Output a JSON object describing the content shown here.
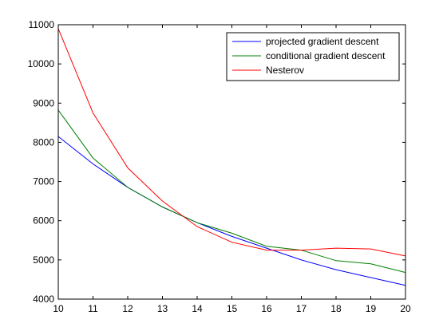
{
  "chart_data": {
    "type": "line",
    "title": "",
    "xlabel": "",
    "ylabel": "",
    "xlim": [
      10,
      20
    ],
    "ylim": [
      4000,
      11000
    ],
    "xticks": [
      10,
      11,
      12,
      13,
      14,
      15,
      16,
      17,
      18,
      19,
      20
    ],
    "yticks": [
      4000,
      5000,
      6000,
      7000,
      8000,
      9000,
      10000,
      11000
    ],
    "grid": false,
    "legend_position": "top-right",
    "x": [
      10,
      11,
      12,
      13,
      14,
      15,
      16,
      17,
      18,
      19,
      20
    ],
    "series": [
      {
        "name": "projected gradient descent",
        "color": "#0000ff",
        "values": [
          8150,
          7450,
          6850,
          6350,
          5950,
          5600,
          5300,
          5000,
          4750,
          4550,
          4350
        ]
      },
      {
        "name": "conditional gradient descent",
        "color": "#008000",
        "values": [
          8820,
          7600,
          6850,
          6350,
          5950,
          5680,
          5350,
          5250,
          4980,
          4900,
          4680
        ]
      },
      {
        "name": "Nesterov",
        "color": "#ff0000",
        "values": [
          10900,
          8750,
          7350,
          6500,
          5850,
          5450,
          5250,
          5250,
          5300,
          5280,
          5100
        ]
      }
    ]
  }
}
